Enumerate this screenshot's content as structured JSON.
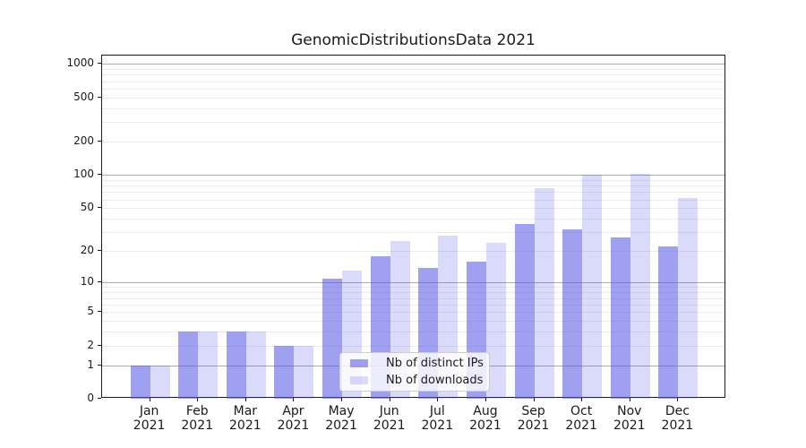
{
  "chart_data": {
    "type": "bar",
    "title": "GenomicDistributionsData 2021",
    "categories": [
      "Jan 2021",
      "Feb 2021",
      "Mar 2021",
      "Apr 2021",
      "May 2021",
      "Jun 2021",
      "Jul 2021",
      "Aug 2021",
      "Sep 2021",
      "Oct 2021",
      "Nov 2021",
      "Dec 2021"
    ],
    "series": [
      {
        "name": "Nb of distinct IPs",
        "color": "#a0a0f0",
        "fill": "rgba(85,85,230,0.56)",
        "values": [
          1,
          3,
          3,
          2,
          11,
          18,
          14,
          16,
          36,
          32,
          27,
          22
        ]
      },
      {
        "name": "Nb of downloads",
        "color": "#d9d9f9",
        "fill": "rgba(85,85,230,0.22)",
        "values": [
          1,
          3,
          3,
          2,
          13,
          25,
          28,
          24,
          76,
          100,
          102,
          62
        ]
      }
    ],
    "xlabel": "",
    "ylabel": "",
    "y_scale": "log10(1+v)",
    "y_axis_max": 1190,
    "y_ticks": [
      0,
      1,
      2,
      5,
      10,
      20,
      50,
      100,
      200,
      500,
      1000
    ],
    "y_major_gridlines": [
      1,
      10,
      100,
      1000
    ],
    "y_minor_gridlines": [
      2,
      3,
      4,
      5,
      6,
      7,
      8,
      9,
      20,
      30,
      40,
      50,
      60,
      70,
      80,
      90,
      200,
      300,
      400,
      500,
      600,
      700,
      800,
      900
    ],
    "grid": "both",
    "legend_position": "lower center"
  },
  "colors": {
    "major_grid": "#ababab",
    "minor_grid": "#ebebeb",
    "spine": "#1a1a1a",
    "text": "#1a1a1a",
    "legend_border": "#cccccc"
  }
}
